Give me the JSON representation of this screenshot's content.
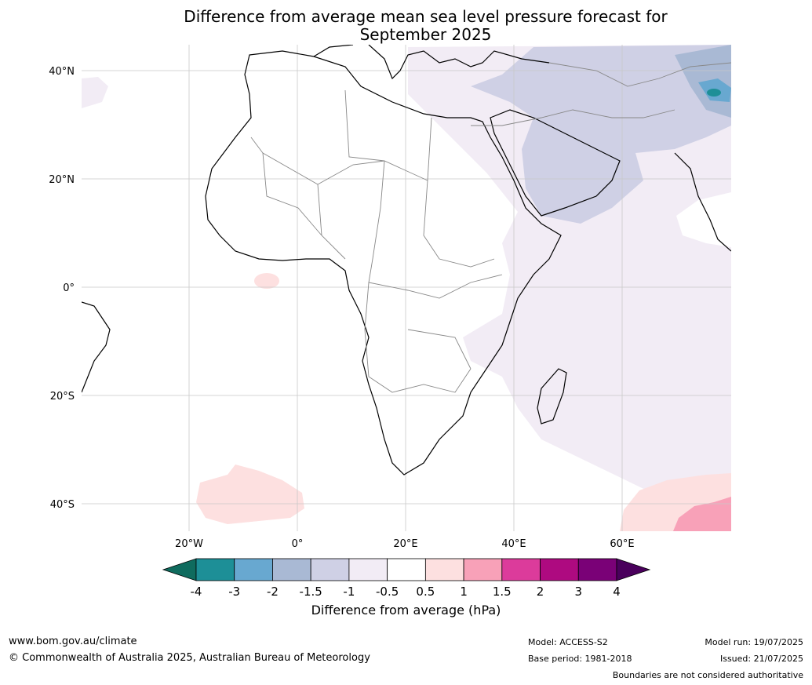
{
  "title_line1": "Difference from average mean sea level pressure forecast for",
  "title_line2": "September 2025",
  "lat_labels": [
    "40°N",
    "20°N",
    "0°",
    "20°S",
    "40°S"
  ],
  "lon_labels": [
    "20°W",
    "0°",
    "20°E",
    "40°E",
    "60°E"
  ],
  "colorbar": {
    "ticks": [
      "-4",
      "-3",
      "-2",
      "-1.5",
      "-1",
      "-0.5",
      "0.5",
      "1",
      "1.5",
      "2",
      "3",
      "4"
    ],
    "colors": [
      "#0f6b5e",
      "#1d8f97",
      "#68a8d0",
      "#a9b9d4",
      "#cfd0e5",
      "#f2ecf5",
      "#ffffff",
      "#fde0e0",
      "#f8a1b8",
      "#dc3b9b",
      "#ae0a80",
      "#7a0177",
      "#4a005c"
    ],
    "label": "Difference from average (hPa)"
  },
  "footer": {
    "url": "www.bom.gov.au/climate",
    "copyright": "© Commonwealth of Australia 2025, Australian Bureau of Meteorology",
    "model": "Model: ACCESS-S2",
    "base_period": "Base period: 1981-2018",
    "model_run": "Model run: 19/07/2025",
    "issued": "Issued: 21/07/2025",
    "boundaries_note": "Boundaries are not considered authoritative"
  }
}
